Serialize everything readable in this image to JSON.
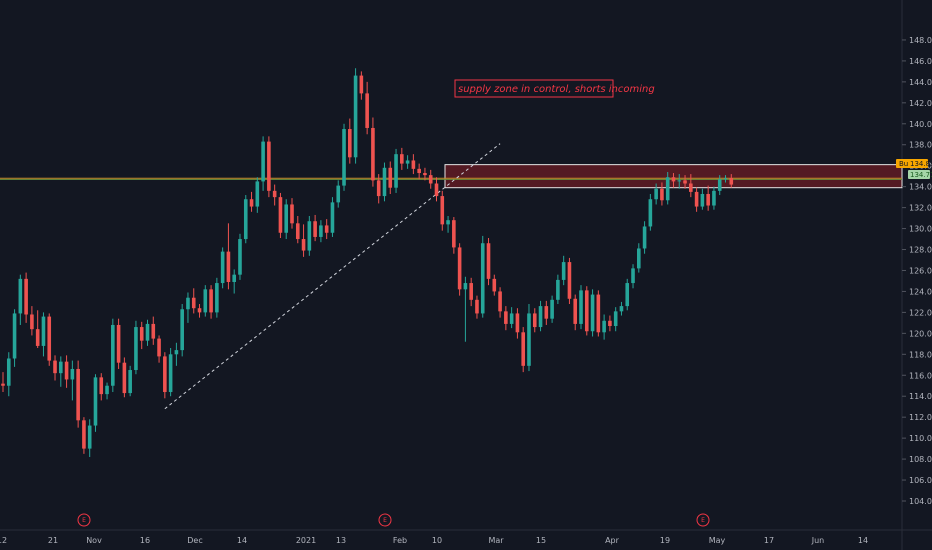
{
  "colors": {
    "background": "#131722",
    "up": "#26a69a",
    "down": "#ef5350",
    "zone_fill": "#8b1e25",
    "zone_border": "#e6e6e6",
    "annotation": "#f23645",
    "trendline": "#d1d4dc",
    "hline_orange": "#c98a2a",
    "hline_green": "#6b8f3a",
    "axis_text": "#b2b5be"
  },
  "annotation": {
    "text": "supply zone in control, shorts incoming"
  },
  "price_tags": [
    {
      "label": "Bu",
      "value": "134.83",
      "color": "#f7a600"
    },
    {
      "label": "134.71",
      "value": "",
      "color": "#a5d6a7"
    }
  ],
  "events": [
    "E",
    "E",
    "E"
  ],
  "chart_data": {
    "type": "candlestick",
    "title": "",
    "ylim": [
      104,
      150
    ],
    "y_ticks": [
      "148.00",
      "146.00",
      "144.00",
      "142.00",
      "140.00",
      "138.00",
      "136.00",
      "134.00",
      "132.00",
      "130.00",
      "128.00",
      "126.00",
      "124.00",
      "122.00",
      "120.00",
      "118.00",
      "116.00",
      "114.00",
      "112.00",
      "110.00",
      "108.00",
      "106.00",
      "104.00"
    ],
    "x_labels": [
      "12",
      "21",
      "Nov",
      "16",
      "Dec",
      "14",
      "2021",
      "13",
      "Feb",
      "10",
      "Mar",
      "15",
      "Apr",
      "19",
      "May",
      "17",
      "Jun",
      "14"
    ],
    "supply_zone": {
      "low": 133.9,
      "high": 136.1
    },
    "horizontal_lines": [
      134.8,
      134.7
    ],
    "trendline": {
      "from": {
        "bar": 28,
        "price": 112.8
      },
      "to": {
        "bar": 86,
        "price": 138.1
      }
    },
    "ohlc": [
      [
        115.2,
        116.3,
        114.4,
        115.0
      ],
      [
        115.0,
        118.2,
        114.0,
        117.6
      ],
      [
        117.6,
        122.3,
        116.8,
        121.9
      ],
      [
        121.9,
        125.6,
        120.8,
        125.2
      ],
      [
        125.2,
        125.8,
        121.0,
        121.8
      ],
      [
        121.8,
        122.6,
        119.8,
        120.4
      ],
      [
        120.4,
        122.2,
        118.6,
        118.8
      ],
      [
        118.8,
        122.0,
        117.8,
        121.6
      ],
      [
        121.6,
        121.9,
        116.9,
        117.4
      ],
      [
        117.4,
        117.9,
        115.5,
        116.2
      ],
      [
        116.2,
        117.8,
        114.9,
        117.3
      ],
      [
        117.3,
        117.9,
        114.8,
        115.6
      ],
      [
        115.6,
        117.4,
        113.6,
        116.6
      ],
      [
        116.6,
        117.4,
        111.0,
        111.7
      ],
      [
        111.7,
        112.0,
        108.5,
        109.0
      ],
      [
        109.0,
        111.8,
        108.2,
        111.2
      ],
      [
        111.2,
        116.1,
        110.6,
        115.8
      ],
      [
        115.8,
        116.2,
        113.6,
        114.2
      ],
      [
        114.2,
        115.3,
        113.7,
        115.0
      ],
      [
        115.0,
        121.4,
        114.4,
        120.8
      ],
      [
        120.8,
        121.4,
        116.6,
        117.2
      ],
      [
        117.2,
        117.7,
        113.9,
        114.3
      ],
      [
        114.3,
        116.9,
        114.0,
        116.5
      ],
      [
        116.5,
        121.2,
        116.1,
        120.6
      ],
      [
        120.6,
        121.1,
        118.5,
        119.3
      ],
      [
        119.3,
        121.3,
        118.8,
        120.9
      ],
      [
        120.9,
        121.6,
        118.9,
        119.5
      ],
      [
        119.5,
        119.8,
        117.2,
        117.8
      ],
      [
        117.8,
        118.2,
        113.8,
        114.4
      ],
      [
        114.4,
        118.6,
        114.0,
        118.0
      ],
      [
        118.0,
        119.1,
        116.9,
        118.4
      ],
      [
        118.4,
        122.8,
        117.8,
        122.3
      ],
      [
        122.3,
        123.9,
        121.0,
        123.4
      ],
      [
        123.4,
        124.3,
        121.9,
        122.4
      ],
      [
        122.4,
        122.8,
        121.5,
        122.0
      ],
      [
        122.0,
        124.6,
        121.6,
        124.2
      ],
      [
        124.2,
        124.6,
        121.4,
        122.0
      ],
      [
        122.0,
        125.3,
        121.5,
        124.8
      ],
      [
        124.8,
        128.2,
        124.3,
        127.8
      ],
      [
        127.8,
        130.5,
        124.2,
        124.9
      ],
      [
        124.9,
        126.1,
        123.8,
        125.6
      ],
      [
        125.6,
        129.5,
        125.1,
        129.0
      ],
      [
        129.0,
        133.2,
        128.6,
        132.8
      ],
      [
        132.8,
        133.5,
        131.6,
        132.1
      ],
      [
        132.1,
        134.9,
        131.5,
        134.5
      ],
      [
        134.5,
        138.8,
        133.6,
        138.3
      ],
      [
        138.3,
        138.8,
        133.0,
        133.6
      ],
      [
        133.6,
        134.2,
        132.2,
        133.0
      ],
      [
        133.0,
        133.4,
        129.1,
        129.6
      ],
      [
        129.6,
        132.8,
        129.0,
        132.3
      ],
      [
        132.3,
        132.9,
        130.0,
        130.5
      ],
      [
        130.5,
        131.2,
        128.6,
        129.0
      ],
      [
        129.0,
        130.4,
        127.3,
        127.9
      ],
      [
        127.9,
        131.2,
        127.4,
        130.7
      ],
      [
        130.7,
        131.3,
        128.8,
        129.2
      ],
      [
        129.2,
        130.8,
        128.7,
        130.3
      ],
      [
        130.3,
        130.9,
        129.0,
        129.6
      ],
      [
        129.6,
        133.0,
        129.2,
        132.5
      ],
      [
        132.5,
        134.6,
        132.0,
        134.1
      ],
      [
        134.1,
        140.0,
        133.6,
        139.5
      ],
      [
        139.5,
        140.5,
        136.2,
        136.8
      ],
      [
        136.8,
        145.3,
        136.2,
        144.6
      ],
      [
        144.6,
        145.0,
        142.3,
        142.9
      ],
      [
        142.9,
        144.0,
        139.0,
        139.6
      ],
      [
        139.6,
        140.6,
        134.0,
        134.6
      ],
      [
        134.6,
        135.2,
        132.4,
        133.1
      ],
      [
        133.1,
        136.3,
        132.6,
        135.8
      ],
      [
        135.8,
        136.4,
        133.3,
        133.9
      ],
      [
        133.9,
        137.6,
        133.4,
        137.1
      ],
      [
        137.1,
        137.7,
        135.6,
        136.2
      ],
      [
        136.2,
        137.0,
        135.7,
        136.5
      ],
      [
        136.5,
        137.1,
        135.2,
        135.7
      ],
      [
        135.7,
        136.2,
        134.7,
        135.3
      ],
      [
        135.3,
        135.8,
        134.6,
        135.1
      ],
      [
        135.1,
        135.6,
        133.8,
        134.3
      ],
      [
        134.3,
        134.9,
        132.6,
        133.1
      ],
      [
        133.1,
        133.6,
        129.8,
        130.4
      ],
      [
        130.4,
        131.2,
        129.6,
        130.8
      ],
      [
        130.8,
        131.1,
        127.6,
        128.2
      ],
      [
        128.2,
        128.6,
        123.6,
        124.2
      ],
      [
        124.2,
        125.4,
        119.2,
        124.8
      ],
      [
        124.8,
        125.3,
        122.6,
        123.2
      ],
      [
        123.2,
        123.6,
        121.4,
        121.9
      ],
      [
        121.9,
        129.3,
        121.5,
        128.6
      ],
      [
        128.6,
        129.1,
        124.6,
        125.2
      ],
      [
        125.2,
        125.6,
        123.6,
        124.0
      ],
      [
        124.0,
        124.4,
        121.5,
        122.1
      ],
      [
        122.1,
        122.6,
        120.3,
        120.9
      ],
      [
        120.9,
        122.5,
        120.5,
        121.9
      ],
      [
        121.9,
        122.4,
        119.5,
        120.1
      ],
      [
        120.1,
        120.6,
        116.3,
        116.9
      ],
      [
        116.9,
        122.8,
        116.4,
        121.9
      ],
      [
        121.9,
        122.4,
        120.1,
        120.6
      ],
      [
        120.6,
        123.1,
        120.2,
        122.6
      ],
      [
        122.6,
        123.1,
        120.8,
        121.4
      ],
      [
        121.4,
        123.6,
        121.0,
        123.2
      ],
      [
        123.2,
        125.6,
        122.8,
        125.1
      ],
      [
        125.1,
        127.4,
        124.6,
        126.8
      ],
      [
        126.8,
        127.2,
        122.8,
        123.3
      ],
      [
        123.3,
        123.7,
        120.3,
        120.9
      ],
      [
        120.9,
        124.6,
        120.4,
        124.1
      ],
      [
        124.1,
        124.5,
        119.8,
        120.2
      ],
      [
        120.2,
        124.2,
        119.7,
        123.7
      ],
      [
        123.7,
        124.1,
        119.7,
        120.1
      ],
      [
        120.1,
        121.8,
        119.4,
        121.2
      ],
      [
        121.2,
        121.7,
        120.2,
        120.7
      ],
      [
        120.7,
        122.5,
        120.2,
        122.1
      ],
      [
        122.1,
        123.0,
        121.7,
        122.6
      ],
      [
        122.6,
        125.2,
        122.2,
        124.8
      ],
      [
        124.8,
        126.6,
        124.3,
        126.2
      ],
      [
        126.2,
        128.6,
        125.8,
        128.1
      ],
      [
        128.1,
        130.7,
        127.6,
        130.2
      ],
      [
        130.2,
        133.3,
        129.8,
        132.8
      ],
      [
        132.8,
        134.3,
        132.3,
        133.8
      ],
      [
        133.8,
        134.4,
        132.2,
        132.7
      ],
      [
        132.7,
        135.4,
        132.3,
        134.9
      ],
      [
        134.9,
        135.3,
        133.9,
        134.5
      ],
      [
        134.5,
        135.2,
        133.8,
        134.6
      ],
      [
        134.6,
        135.1,
        133.8,
        134.3
      ],
      [
        134.3,
        135.2,
        133.0,
        133.5
      ],
      [
        133.5,
        133.9,
        131.6,
        132.1
      ],
      [
        132.1,
        133.8,
        131.8,
        133.3
      ],
      [
        133.3,
        134.1,
        131.7,
        132.2
      ],
      [
        132.2,
        134.0,
        131.8,
        133.6
      ],
      [
        133.6,
        135.1,
        133.2,
        134.7
      ],
      [
        134.7,
        135.1,
        134.4,
        134.8
      ],
      [
        134.8,
        135.2,
        133.9,
        134.2
      ]
    ]
  }
}
